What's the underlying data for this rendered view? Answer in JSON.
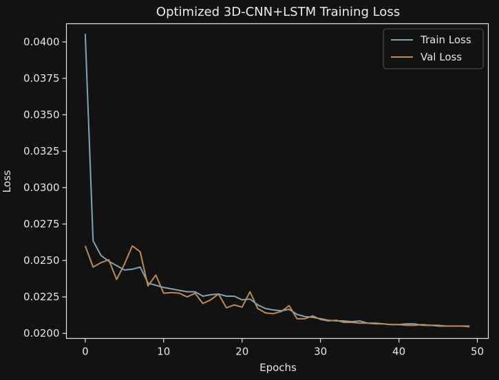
{
  "chart_data": {
    "type": "line",
    "title": "Optimized 3D-CNN+LSTM Training Loss",
    "xlabel": "Epochs",
    "ylabel": "Loss",
    "xlim": [
      -2.4,
      51.4
    ],
    "ylim": [
      0.01965,
      0.04125
    ],
    "xticks": [
      0,
      10,
      20,
      30,
      40,
      50
    ],
    "yticks": [
      0.02,
      0.0225,
      0.025,
      0.0275,
      0.03,
      0.0325,
      0.035,
      0.0375,
      0.04
    ],
    "ytick_labels": [
      "0.0200",
      "0.0225",
      "0.0250",
      "0.0275",
      "0.0300",
      "0.0325",
      "0.0350",
      "0.0375",
      "0.0400"
    ],
    "grid": false,
    "legend_position": "top-right",
    "x": [
      0,
      1,
      2,
      3,
      4,
      5,
      6,
      7,
      8,
      9,
      10,
      11,
      12,
      13,
      14,
      15,
      16,
      17,
      18,
      19,
      20,
      21,
      22,
      23,
      24,
      25,
      26,
      27,
      28,
      29,
      30,
      31,
      32,
      33,
      34,
      35,
      36,
      37,
      38,
      39,
      40,
      41,
      42,
      43,
      44,
      45,
      46,
      47,
      48,
      49
    ],
    "series": [
      {
        "name": "Train Loss",
        "color": "#7fa5b8",
        "values": [
          0.04055,
          0.02635,
          0.02535,
          0.02495,
          0.02465,
          0.02435,
          0.0244,
          0.02455,
          0.02345,
          0.0233,
          0.02315,
          0.02305,
          0.02295,
          0.02285,
          0.02285,
          0.02255,
          0.02265,
          0.0227,
          0.02255,
          0.02255,
          0.0223,
          0.02235,
          0.02195,
          0.0217,
          0.0216,
          0.02155,
          0.02165,
          0.0213,
          0.02115,
          0.0211,
          0.021,
          0.0209,
          0.02085,
          0.02085,
          0.0208,
          0.02085,
          0.0207,
          0.0207,
          0.02065,
          0.0206,
          0.0206,
          0.02065,
          0.02065,
          0.02055,
          0.02055,
          0.0205,
          0.0205,
          0.0205,
          0.0205,
          0.0205
        ]
      },
      {
        "name": "Val Loss",
        "color": "#c08a55",
        "values": [
          0.026,
          0.02455,
          0.02485,
          0.02505,
          0.0237,
          0.02475,
          0.026,
          0.0256,
          0.02325,
          0.024,
          0.02275,
          0.0228,
          0.02275,
          0.0225,
          0.02275,
          0.02205,
          0.0223,
          0.0227,
          0.02175,
          0.02195,
          0.0218,
          0.02285,
          0.0217,
          0.0214,
          0.02135,
          0.0215,
          0.0219,
          0.021,
          0.021,
          0.0212,
          0.02095,
          0.02085,
          0.0209,
          0.02075,
          0.02075,
          0.0207,
          0.0207,
          0.02065,
          0.02065,
          0.0206,
          0.0206,
          0.02055,
          0.02055,
          0.0206,
          0.02055,
          0.02055,
          0.0205,
          0.0205,
          0.0205,
          0.02045
        ]
      }
    ]
  }
}
